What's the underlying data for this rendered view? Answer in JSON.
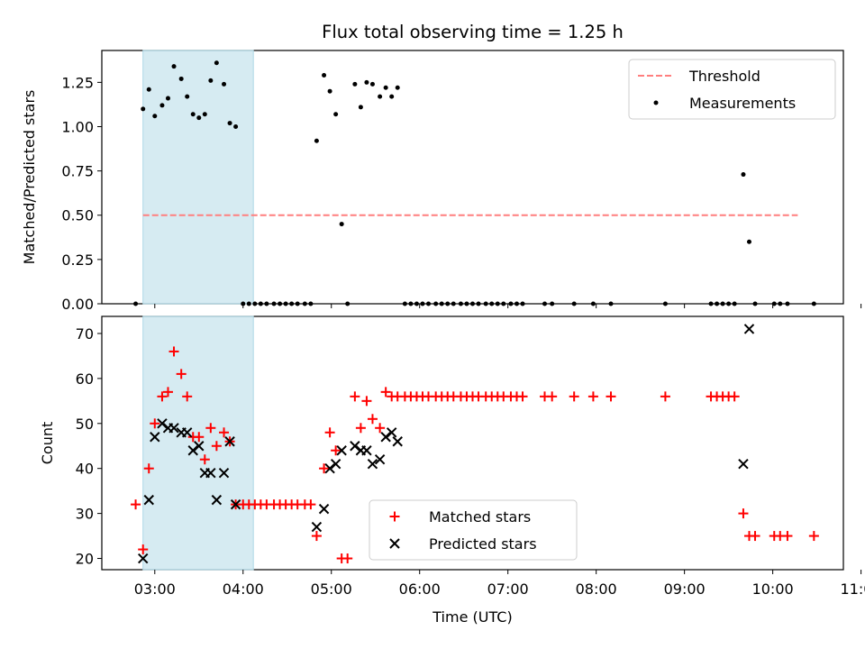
{
  "chart_data": [
    {
      "type": "scatter",
      "title": "Flux total observing time = 1.25 h",
      "xlabel": "",
      "ylabel": "Matched/Predicted stars",
      "xlim": [
        "02:24",
        "10:48"
      ],
      "ylim": [
        0,
        1.43
      ],
      "yticks": [
        "0.00",
        "0.25",
        "0.50",
        "0.75",
        "1.00",
        "1.25"
      ],
      "xticks": [
        "03:00",
        "04:00",
        "05:00",
        "06:00",
        "07:00",
        "08:00",
        "09:00",
        "10:00",
        "11:00"
      ],
      "xtick_labels_shown": false,
      "shaded_span": [
        "02:52",
        "04:07"
      ],
      "shaded_color": "#add8e6",
      "grid": false,
      "legend_position": "upper right",
      "threshold": {
        "name": "Threshold",
        "y": 0.5,
        "x_range": [
          "02:52",
          "10:17"
        ],
        "color": "#ff7f7f",
        "style": "dashed"
      },
      "series": [
        {
          "name": "Measurements",
          "marker": "dot",
          "color": "#000000",
          "points": [
            [
              "02:47",
              0.0
            ],
            [
              "02:52",
              1.1
            ],
            [
              "02:56",
              1.21
            ],
            [
              "03:00",
              1.06
            ],
            [
              "03:05",
              1.12
            ],
            [
              "03:09",
              1.16
            ],
            [
              "03:13",
              1.34
            ],
            [
              "03:18",
              1.27
            ],
            [
              "03:22",
              1.17
            ],
            [
              "03:26",
              1.07
            ],
            [
              "03:30",
              1.05
            ],
            [
              "03:34",
              1.07
            ],
            [
              "03:38",
              1.26
            ],
            [
              "03:42",
              1.36
            ],
            [
              "03:47",
              1.24
            ],
            [
              "03:51",
              1.02
            ],
            [
              "03:55",
              1.0
            ],
            [
              "04:00",
              0.0
            ],
            [
              "04:04",
              0.0
            ],
            [
              "04:08",
              0.0
            ],
            [
              "04:12",
              0.0
            ],
            [
              "04:16",
              0.0
            ],
            [
              "04:21",
              0.0
            ],
            [
              "04:25",
              0.0
            ],
            [
              "04:29",
              0.0
            ],
            [
              "04:33",
              0.0
            ],
            [
              "04:37",
              0.0
            ],
            [
              "04:42",
              0.0
            ],
            [
              "04:46",
              0.0
            ],
            [
              "04:50",
              0.92
            ],
            [
              "04:55",
              1.29
            ],
            [
              "04:59",
              1.2
            ],
            [
              "05:03",
              1.07
            ],
            [
              "05:07",
              0.45
            ],
            [
              "05:11",
              0.0
            ],
            [
              "05:16",
              1.24
            ],
            [
              "05:20",
              1.11
            ],
            [
              "05:24",
              1.25
            ],
            [
              "05:28",
              1.24
            ],
            [
              "05:33",
              1.17
            ],
            [
              "05:37",
              1.22
            ],
            [
              "05:41",
              1.17
            ],
            [
              "05:45",
              1.22
            ],
            [
              "05:50",
              0.0
            ],
            [
              "05:54",
              0.0
            ],
            [
              "05:58",
              0.0
            ],
            [
              "06:02",
              0.0
            ],
            [
              "06:06",
              0.0
            ],
            [
              "06:11",
              0.0
            ],
            [
              "06:15",
              0.0
            ],
            [
              "06:19",
              0.0
            ],
            [
              "06:23",
              0.0
            ],
            [
              "06:28",
              0.0
            ],
            [
              "06:32",
              0.0
            ],
            [
              "06:36",
              0.0
            ],
            [
              "06:40",
              0.0
            ],
            [
              "06:45",
              0.0
            ],
            [
              "06:49",
              0.0
            ],
            [
              "06:53",
              0.0
            ],
            [
              "06:57",
              0.0
            ],
            [
              "07:02",
              0.0
            ],
            [
              "07:06",
              0.0
            ],
            [
              "07:10",
              0.0
            ],
            [
              "07:25",
              0.0
            ],
            [
              "07:30",
              0.0
            ],
            [
              "07:45",
              0.0
            ],
            [
              "07:58",
              0.0
            ],
            [
              "08:10",
              0.0
            ],
            [
              "08:47",
              0.0
            ],
            [
              "09:18",
              0.0
            ],
            [
              "09:22",
              0.0
            ],
            [
              "09:26",
              0.0
            ],
            [
              "09:30",
              0.0
            ],
            [
              "09:34",
              0.0
            ],
            [
              "09:40",
              0.73
            ],
            [
              "09:44",
              0.35
            ],
            [
              "09:48",
              0.0
            ],
            [
              "10:01",
              0.0
            ],
            [
              "10:05",
              0.0
            ],
            [
              "10:10",
              0.0
            ],
            [
              "10:28",
              0.0
            ]
          ]
        }
      ]
    },
    {
      "type": "scatter",
      "title": "",
      "xlabel": "Time (UTC)",
      "ylabel": "Count",
      "xlim": [
        "02:24",
        "10:48"
      ],
      "ylim": [
        17.5,
        73.8
      ],
      "yticks": [
        "20",
        "30",
        "40",
        "50",
        "60",
        "70"
      ],
      "xticks": [
        "03:00",
        "04:00",
        "05:00",
        "06:00",
        "07:00",
        "08:00",
        "09:00",
        "10:00",
        "11:00"
      ],
      "shaded_span": [
        "02:52",
        "04:07"
      ],
      "shaded_color": "#add8e6",
      "grid": false,
      "legend_position": "lower center",
      "series": [
        {
          "name": "Matched stars",
          "marker": "plus",
          "color": "#ff0000",
          "points": [
            [
              "02:47",
              32
            ],
            [
              "02:52",
              22
            ],
            [
              "02:56",
              40
            ],
            [
              "03:00",
              50
            ],
            [
              "03:05",
              56
            ],
            [
              "03:09",
              57
            ],
            [
              "03:13",
              66
            ],
            [
              "03:18",
              61
            ],
            [
              "03:22",
              56
            ],
            [
              "03:26",
              47
            ],
            [
              "03:30",
              47
            ],
            [
              "03:34",
              42
            ],
            [
              "03:38",
              49
            ],
            [
              "03:42",
              45
            ],
            [
              "03:47",
              48
            ],
            [
              "03:51",
              46
            ],
            [
              "03:55",
              32
            ],
            [
              "04:00",
              32
            ],
            [
              "04:04",
              32
            ],
            [
              "04:08",
              32
            ],
            [
              "04:12",
              32
            ],
            [
              "04:16",
              32
            ],
            [
              "04:21",
              32
            ],
            [
              "04:25",
              32
            ],
            [
              "04:29",
              32
            ],
            [
              "04:33",
              32
            ],
            [
              "04:37",
              32
            ],
            [
              "04:42",
              32
            ],
            [
              "04:46",
              32
            ],
            [
              "04:50",
              25
            ],
            [
              "04:55",
              40
            ],
            [
              "04:59",
              48
            ],
            [
              "05:03",
              44
            ],
            [
              "05:07",
              20
            ],
            [
              "05:11",
              20
            ],
            [
              "05:16",
              56
            ],
            [
              "05:20",
              49
            ],
            [
              "05:24",
              55
            ],
            [
              "05:28",
              51
            ],
            [
              "05:33",
              49
            ],
            [
              "05:37",
              57
            ],
            [
              "05:41",
              56
            ],
            [
              "05:45",
              56
            ],
            [
              "05:50",
              56
            ],
            [
              "05:54",
              56
            ],
            [
              "05:58",
              56
            ],
            [
              "06:02",
              56
            ],
            [
              "06:06",
              56
            ],
            [
              "06:11",
              56
            ],
            [
              "06:15",
              56
            ],
            [
              "06:19",
              56
            ],
            [
              "06:23",
              56
            ],
            [
              "06:28",
              56
            ],
            [
              "06:32",
              56
            ],
            [
              "06:36",
              56
            ],
            [
              "06:40",
              56
            ],
            [
              "06:45",
              56
            ],
            [
              "06:49",
              56
            ],
            [
              "06:53",
              56
            ],
            [
              "06:57",
              56
            ],
            [
              "07:02",
              56
            ],
            [
              "07:06",
              56
            ],
            [
              "07:10",
              56
            ],
            [
              "07:25",
              56
            ],
            [
              "07:30",
              56
            ],
            [
              "07:45",
              56
            ],
            [
              "07:58",
              56
            ],
            [
              "08:10",
              56
            ],
            [
              "08:47",
              56
            ],
            [
              "09:18",
              56
            ],
            [
              "09:22",
              56
            ],
            [
              "09:26",
              56
            ],
            [
              "09:30",
              56
            ],
            [
              "09:34",
              56
            ],
            [
              "09:40",
              30
            ],
            [
              "09:44",
              25
            ],
            [
              "09:48",
              25
            ],
            [
              "10:01",
              25
            ],
            [
              "10:05",
              25
            ],
            [
              "10:10",
              25
            ],
            [
              "10:28",
              25
            ]
          ]
        },
        {
          "name": "Predicted stars",
          "marker": "x",
          "color": "#000000",
          "points": [
            [
              "02:52",
              20
            ],
            [
              "02:56",
              33
            ],
            [
              "03:00",
              47
            ],
            [
              "03:05",
              50
            ],
            [
              "03:09",
              49
            ],
            [
              "03:13",
              49
            ],
            [
              "03:18",
              48
            ],
            [
              "03:22",
              48
            ],
            [
              "03:26",
              44
            ],
            [
              "03:30",
              45
            ],
            [
              "03:34",
              39
            ],
            [
              "03:38",
              39
            ],
            [
              "03:42",
              33
            ],
            [
              "03:47",
              39
            ],
            [
              "03:51",
              46
            ],
            [
              "03:55",
              32
            ],
            [
              "04:50",
              27
            ],
            [
              "04:55",
              31
            ],
            [
              "04:59",
              40
            ],
            [
              "05:03",
              41
            ],
            [
              "05:07",
              44
            ],
            [
              "05:16",
              45
            ],
            [
              "05:20",
              44
            ],
            [
              "05:24",
              44
            ],
            [
              "05:28",
              41
            ],
            [
              "05:33",
              42
            ],
            [
              "05:37",
              47
            ],
            [
              "05:41",
              48
            ],
            [
              "05:45",
              46
            ],
            [
              "09:40",
              41
            ],
            [
              "09:44",
              71
            ]
          ]
        }
      ]
    }
  ]
}
